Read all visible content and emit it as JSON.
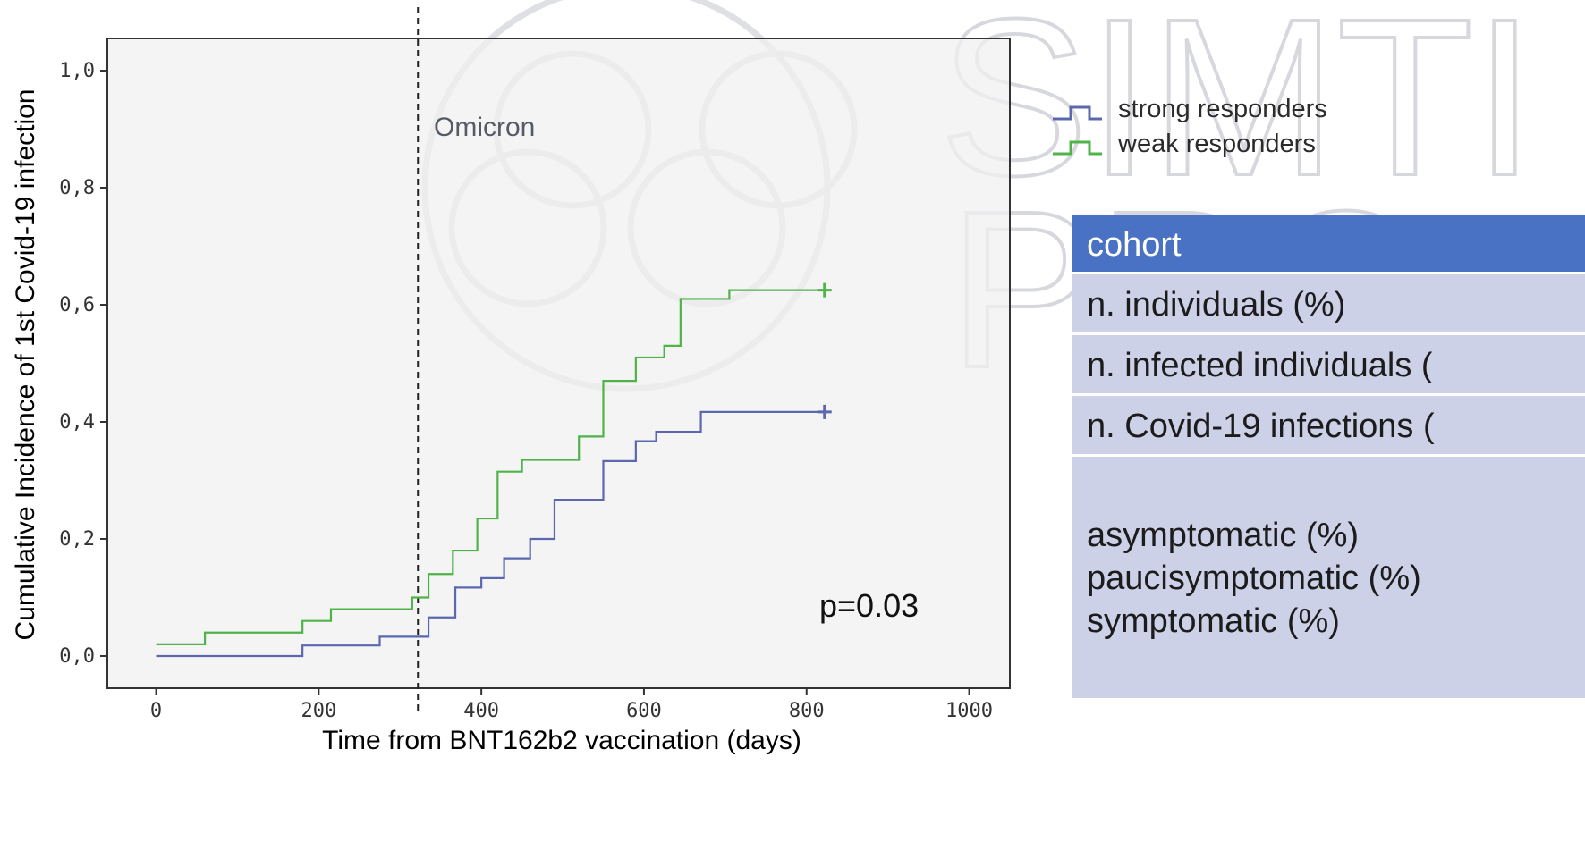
{
  "colors": {
    "strong": "#5b68b0",
    "weak": "#4fb34a",
    "plot_bg": "#f0f0f0",
    "table_header": "#4a72c4",
    "table_row": "#ccd1e7",
    "watermark": "#c9ccd2"
  },
  "legend": {
    "strong_label": "strong responders",
    "weak_label": "weak responders"
  },
  "annotations": {
    "omicron": "Omicron",
    "pvalue": "p=0.03"
  },
  "watermark": {
    "line1": "SIMTI",
    "line2": "PRO"
  },
  "table": {
    "header": "cohort",
    "rows": [
      "n. individuals (%)",
      "n. infected individuals (",
      "n. Covid-19 infections ("
    ],
    "sub_rows": [
      "asymptomatic (%)",
      "paucisymptomatic (%)",
      "symptomatic (%)"
    ]
  },
  "chart_data": {
    "type": "line",
    "step": true,
    "xlabel": "Time from BNT162b2 vaccination (days)",
    "ylabel": "Cumulative Incidence of 1st Covid-19 infection",
    "xlim": [
      -60,
      1050
    ],
    "ylim": [
      -0.055,
      1.055
    ],
    "x_ticks": [
      0,
      200,
      400,
      600,
      800,
      1000
    ],
    "x_tick_labels": [
      "0",
      "200",
      "400",
      "600",
      "800",
      "1000"
    ],
    "y_ticks": [
      0.0,
      0.2,
      0.4,
      0.6,
      0.8,
      1.0
    ],
    "y_tick_labels": [
      "0,0",
      "0,2",
      "0,4",
      "0,6",
      "0,8",
      "1,0"
    ],
    "vline_x": 322,
    "grid": false,
    "legend_position": "right",
    "series": [
      {
        "name": "strong responders",
        "x": [
          0,
          180,
          275,
          335,
          368,
          400,
          428,
          460,
          490,
          550,
          590,
          615,
          670,
          822
        ],
        "y": [
          0.0,
          0.018,
          0.033,
          0.066,
          0.117,
          0.133,
          0.167,
          0.2,
          0.267,
          0.333,
          0.367,
          0.383,
          0.417,
          0.417
        ],
        "censor_x": 822
      },
      {
        "name": "weak responders",
        "x": [
          0,
          60,
          180,
          215,
          315,
          335,
          365,
          395,
          420,
          450,
          520,
          550,
          590,
          625,
          645,
          705,
          822
        ],
        "y": [
          0.02,
          0.04,
          0.06,
          0.08,
          0.1,
          0.14,
          0.18,
          0.235,
          0.315,
          0.335,
          0.375,
          0.47,
          0.51,
          0.53,
          0.61,
          0.625,
          0.625
        ],
        "censor_x": 822
      }
    ]
  }
}
